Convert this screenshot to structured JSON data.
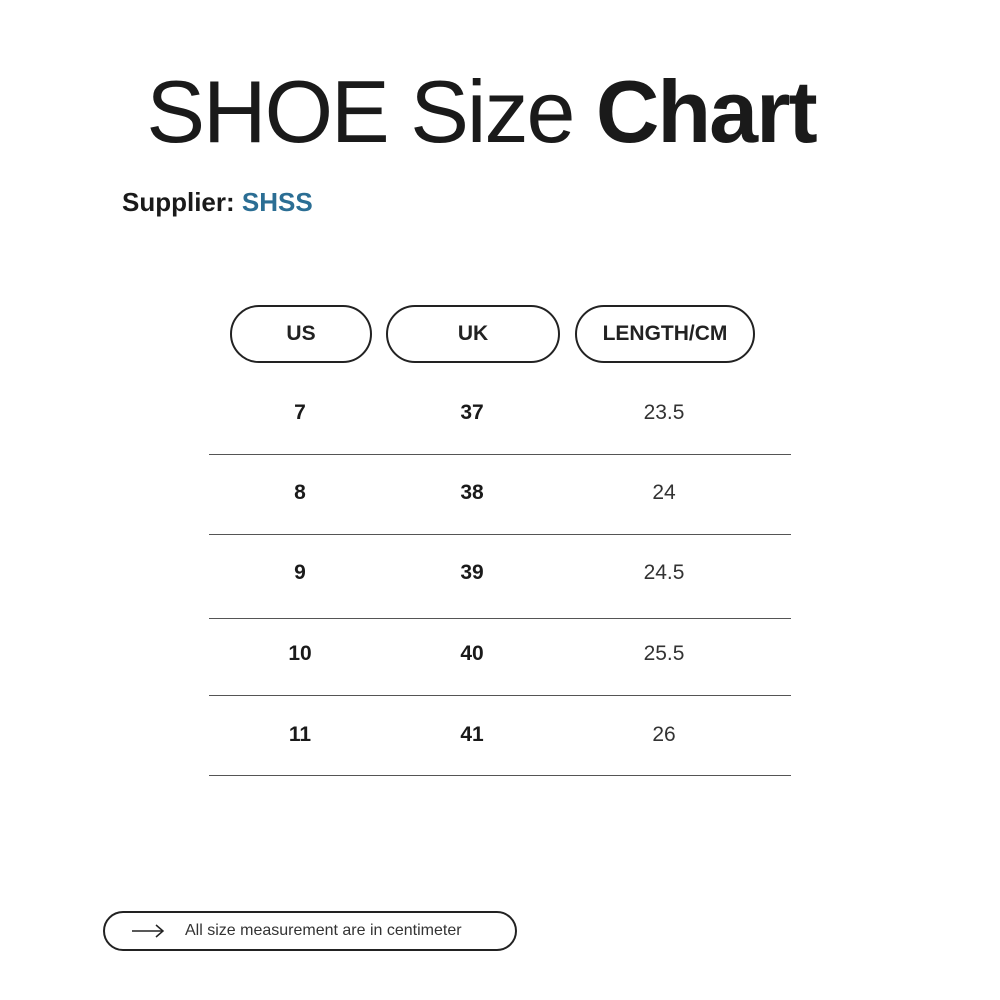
{
  "title": {
    "light": "SHOE Size ",
    "bold": "Chart"
  },
  "supplier": {
    "label": "Supplier: ",
    "value": "SHSS",
    "value_color": "#2b6e94"
  },
  "table": {
    "headers": [
      "US",
      "UK",
      "LENGTH/CM"
    ],
    "rows": [
      [
        "7",
        "37",
        "23.5"
      ],
      [
        "8",
        "38",
        "24"
      ],
      [
        "9",
        "39",
        "24.5"
      ],
      [
        "10",
        "40",
        "25.5"
      ],
      [
        "11",
        "41",
        "26"
      ]
    ]
  },
  "footer": {
    "icon": "arrow-right-icon",
    "text": "All size measurement are in centimeter"
  }
}
